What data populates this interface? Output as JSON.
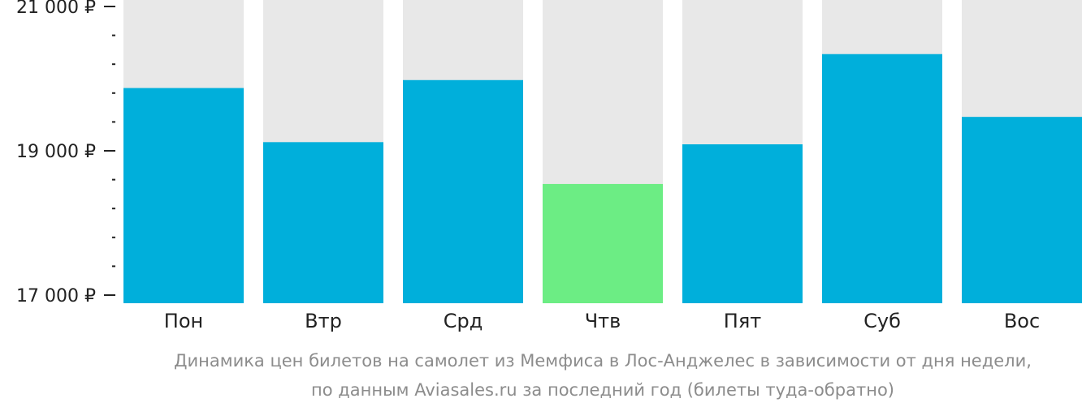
{
  "chart_data": {
    "type": "bar",
    "categories": [
      "Пон",
      "Втр",
      "Срд",
      "Чтв",
      "Пят",
      "Суб",
      "Вос"
    ],
    "values": [
      19870,
      19120,
      19980,
      18540,
      19090,
      20340,
      19470
    ],
    "ylim": [
      17000,
      21000
    ],
    "y_ticks": [
      {
        "value": 17000,
        "label": "17 000 ₽"
      },
      {
        "value": 19000,
        "label": "19 000 ₽"
      },
      {
        "value": 21000,
        "label": "21 000 ₽"
      }
    ],
    "minor_tick_step": 400,
    "highlight_index": 3,
    "colors": {
      "bar": "#00afdb",
      "highlight": "#6ced84",
      "background": "#e8e8e8",
      "axis": "#222222"
    },
    "caption": [
      "Динамика цен билетов на самолет из Мемфиса в Лос-Анджелес в зависимости от дня недели,",
      "по данным Aviasales.ru за последний год (билеты туда-обратно)"
    ]
  }
}
